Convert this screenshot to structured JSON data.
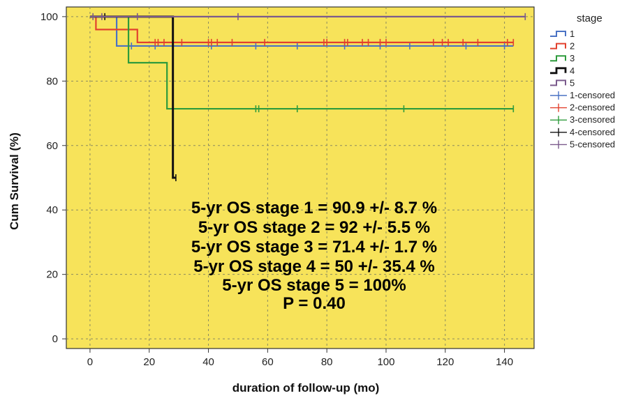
{
  "chart_data": {
    "type": "line",
    "subtype": "kaplan-meier",
    "xlabel": "duration of follow-up (mo)",
    "ylabel": "Cum Survival (%)",
    "xlim": [
      -8,
      150
    ],
    "ylim": [
      -3,
      103
    ],
    "xticks": [
      0,
      20,
      40,
      60,
      80,
      100,
      120,
      140
    ],
    "yticks": [
      0,
      20,
      40,
      60,
      80,
      100
    ],
    "grid": true,
    "background": "#f7e35a",
    "legend": {
      "title": "stage",
      "placement": "right-outside",
      "entries": [
        "1",
        "2",
        "3",
        "4",
        "5",
        "1-censored",
        "2-censored",
        "3-censored",
        "4-censored",
        "5-censored"
      ]
    },
    "series": [
      {
        "name": "1",
        "color": "#4a72c4",
        "steps": [
          [
            0,
            100
          ],
          [
            9,
            90.9
          ],
          [
            143,
            90.9
          ]
        ],
        "censored": [
          [
            14,
            90.9
          ],
          [
            22,
            90.9
          ],
          [
            28,
            90.9
          ],
          [
            41,
            90.9
          ],
          [
            56,
            90.9
          ],
          [
            70,
            90.9
          ],
          [
            86,
            90.9
          ],
          [
            98,
            90.9
          ],
          [
            108,
            90.9
          ],
          [
            127,
            90.9
          ],
          [
            140,
            90.9
          ]
        ]
      },
      {
        "name": "2",
        "color": "#e2412e",
        "steps": [
          [
            0,
            100
          ],
          [
            2,
            96
          ],
          [
            16,
            92
          ],
          [
            143,
            92
          ]
        ],
        "censored": [
          [
            22,
            92
          ],
          [
            23,
            92
          ],
          [
            25,
            92
          ],
          [
            31,
            92
          ],
          [
            40,
            92
          ],
          [
            41,
            92
          ],
          [
            43,
            92
          ],
          [
            48,
            92
          ],
          [
            59,
            92
          ],
          [
            79,
            92
          ],
          [
            80,
            92
          ],
          [
            86,
            92
          ],
          [
            87,
            92
          ],
          [
            92,
            92
          ],
          [
            94,
            92
          ],
          [
            98,
            92
          ],
          [
            100,
            92
          ],
          [
            116,
            92
          ],
          [
            119,
            92
          ],
          [
            121,
            92
          ],
          [
            126,
            92
          ],
          [
            131,
            92
          ],
          [
            141,
            92
          ],
          [
            143,
            92
          ]
        ]
      },
      {
        "name": "3",
        "color": "#2e9b3c",
        "steps": [
          [
            0,
            100
          ],
          [
            13,
            85.7
          ],
          [
            26,
            71.4
          ],
          [
            143,
            71.4
          ]
        ],
        "censored": [
          [
            56,
            71.4
          ],
          [
            57,
            71.4
          ],
          [
            70,
            71.4
          ],
          [
            106,
            71.4
          ],
          [
            143,
            71.4
          ]
        ]
      },
      {
        "name": "4",
        "color": "#111111",
        "steps": [
          [
            0,
            100
          ],
          [
            28,
            50
          ],
          [
            29,
            50
          ]
        ],
        "censored": [
          [
            5,
            100
          ],
          [
            29,
            50
          ]
        ]
      },
      {
        "name": "5",
        "color": "#7a5a8c",
        "steps": [
          [
            0,
            100
          ],
          [
            147,
            100
          ]
        ],
        "censored": [
          [
            1,
            100
          ],
          [
            4,
            100
          ],
          [
            16,
            100
          ],
          [
            50,
            100
          ],
          [
            147,
            100
          ]
        ]
      }
    ],
    "annotations": [
      "5-yr OS stage 1 = 90.9 +/- 8.7 %",
      "5-yr OS stage 2 = 92 +/- 5.5 %",
      "5-yr OS stage 3 = 71.4 +/- 1.7 %",
      "5-yr OS stage 4 = 50 +/- 35.4 %",
      "5-yr OS stage 5 = 100%",
      "P = 0.40"
    ]
  },
  "legend_colors": [
    "#4a72c4",
    "#e2412e",
    "#2e9b3c",
    "#111111",
    "#7a5a8c"
  ]
}
